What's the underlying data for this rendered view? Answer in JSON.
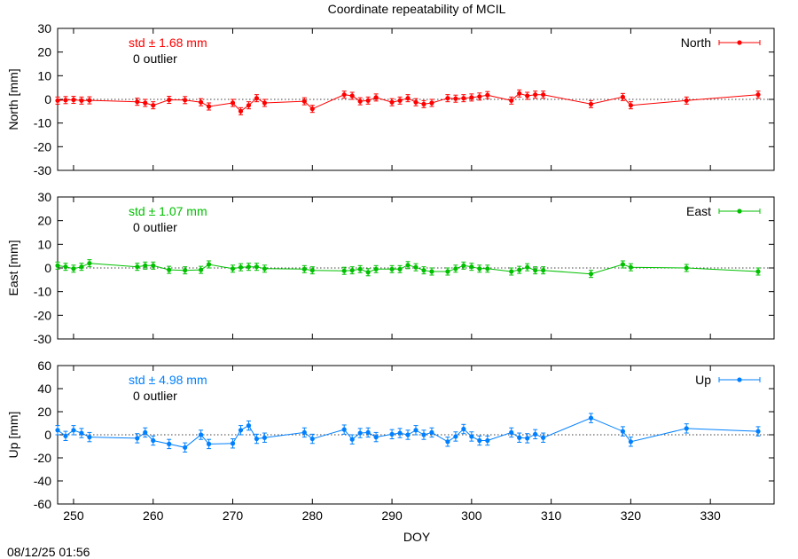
{
  "title": "Coordinate repeatability of MCIL",
  "xlabel": "DOY",
  "timestamp": "08/12/25 01:56",
  "chart_data": {
    "type": "scatter",
    "title": "Coordinate repeatability of MCIL",
    "xlabel": "DOY",
    "xlim": [
      248,
      338
    ],
    "xticks": [
      250,
      260,
      270,
      280,
      290,
      300,
      310,
      320,
      330
    ],
    "x": [
      248,
      249,
      250,
      251,
      252,
      258,
      259,
      260,
      262,
      264,
      266,
      267,
      270,
      271,
      272,
      273,
      274,
      279,
      280,
      284,
      285,
      286,
      287,
      288,
      290,
      291,
      292,
      293,
      294,
      295,
      297,
      298,
      299,
      300,
      301,
      302,
      305,
      306,
      307,
      308,
      309,
      315,
      319,
      320,
      327,
      336
    ],
    "panels": [
      {
        "name": "North",
        "ylabel": "North [mm]",
        "ylim": [
          -30,
          30
        ],
        "yticks": [
          -30,
          -20,
          -10,
          0,
          10,
          20,
          30
        ],
        "color": "#ff0000",
        "std_label": "std ± 1.68 mm",
        "outlier_label": "0 outlier",
        "legend": "North",
        "legend_position": "top-right",
        "values": [
          -0.5,
          -0.3,
          -0.2,
          -0.5,
          -0.4,
          -1.0,
          -1.5,
          -2.5,
          -0.2,
          -0.3,
          -1.2,
          -3.0,
          -1.5,
          -5.0,
          -2.5,
          0.5,
          -1.5,
          -0.8,
          -4.0,
          2.0,
          1.5,
          -0.8,
          -0.5,
          0.8,
          -1.2,
          -0.5,
          0.5,
          -1.2,
          -2.0,
          -1.5,
          0.5,
          0.3,
          0.5,
          0.8,
          1.2,
          1.8,
          -0.5,
          2.5,
          1.5,
          2.0,
          2.0,
          -2.0,
          1.0,
          -2.5,
          -0.5,
          2.0
        ],
        "err": 1.5
      },
      {
        "name": "East",
        "ylabel": "East [mm]",
        "ylim": [
          -30,
          30
        ],
        "yticks": [
          -30,
          -20,
          -10,
          0,
          10,
          20,
          30
        ],
        "color": "#00c000",
        "std_label": "std ± 1.07 mm",
        "outlier_label": "0 outlier",
        "legend": "East",
        "legend_position": "top-right",
        "values": [
          1.0,
          0.5,
          -0.3,
          0.5,
          2.0,
          0.5,
          1.0,
          1.0,
          -0.8,
          -1.0,
          -0.8,
          1.5,
          -0.3,
          0.3,
          0.5,
          0.5,
          -0.3,
          -0.5,
          -1.0,
          -1.2,
          -1.0,
          -0.5,
          -1.8,
          -0.5,
          -0.5,
          -0.5,
          1.2,
          0.3,
          -1.0,
          -1.5,
          -1.5,
          -0.3,
          1.0,
          0.5,
          -0.3,
          -0.3,
          -1.5,
          -0.8,
          0.3,
          -1.0,
          -1.0,
          -2.5,
          1.5,
          0.3,
          0.0,
          -1.5
        ],
        "err": 1.5
      },
      {
        "name": "Up",
        "ylabel": "Up [mm]",
        "ylim": [
          -60,
          60
        ],
        "yticks": [
          -60,
          -40,
          -20,
          0,
          20,
          40,
          60
        ],
        "color": "#0080ff",
        "std_label": "std ± 4.98 mm",
        "outlier_label": "0 outlier",
        "legend": "Up",
        "legend_position": "top-right",
        "values": [
          4.0,
          -1.0,
          4.0,
          1.5,
          -2.0,
          -3.0,
          2.0,
          -5.0,
          -8.0,
          -11.0,
          0.0,
          -8.0,
          -7.5,
          4.0,
          8.0,
          -3.5,
          -2.5,
          2.0,
          -3.5,
          4.5,
          -4.0,
          1.5,
          2.0,
          -2.0,
          0.5,
          1.5,
          0.0,
          4.0,
          0.0,
          2.0,
          -6.0,
          -1.5,
          5.0,
          -1.5,
          -5.0,
          -5.0,
          2.0,
          -2.5,
          -3.0,
          0.5,
          -2.5,
          14.5,
          3.0,
          -6.0,
          5.5,
          3.0
        ],
        "err": 4.0
      }
    ]
  }
}
